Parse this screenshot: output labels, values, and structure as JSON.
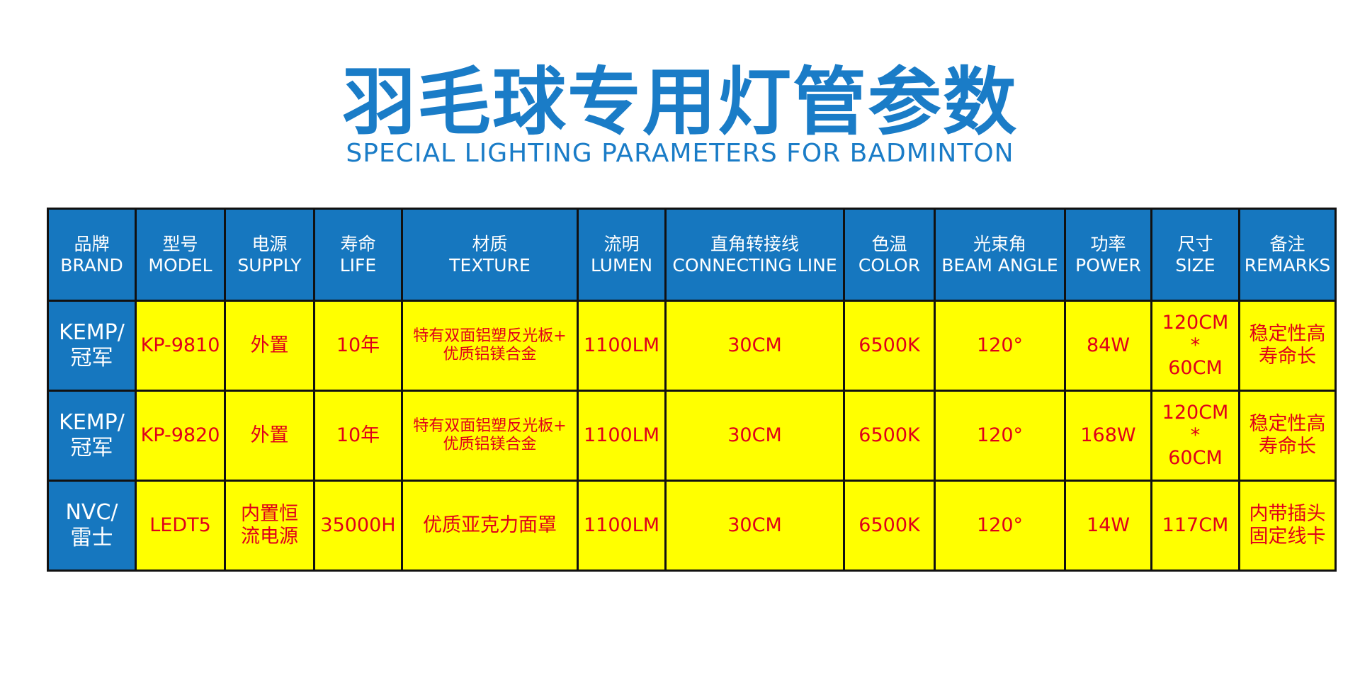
{
  "title": "羽毛球专用灯管参数",
  "subtitle": "SPECIAL LIGHTING PARAMETERS FOR BADMINTON",
  "colors": {
    "title": "#1a7cc7",
    "header_bg": "#1677bf",
    "cell_bg": "#ffff00",
    "cell_text": "#e0001a",
    "border": "#111111"
  },
  "columns": [
    {
      "cn": "品牌",
      "en": "BRAND"
    },
    {
      "cn": "型号",
      "en": "MODEL"
    },
    {
      "cn": "电源",
      "en": "SUPPLY"
    },
    {
      "cn": "寿命",
      "en": "LIFE"
    },
    {
      "cn": "材质",
      "en": "TEXTURE"
    },
    {
      "cn": "流明",
      "en": "LUMEN"
    },
    {
      "cn": "直角转接线",
      "en": "CONNECTING LINE"
    },
    {
      "cn": "色温",
      "en": "COLOR"
    },
    {
      "cn": "光束角",
      "en": "BEAM ANGLE"
    },
    {
      "cn": "功率",
      "en": "POWER"
    },
    {
      "cn": "尺寸",
      "en": "SIZE"
    },
    {
      "cn": "备注",
      "en": "REMARKS"
    }
  ],
  "rows": [
    {
      "brand": [
        "KEMP/",
        "冠军"
      ],
      "model": "KP-9810",
      "supply": [
        "外置"
      ],
      "life": "10年",
      "texture": [
        "特有双面铝塑反光板+",
        "优质铝镁合金"
      ],
      "lumen": "1100LM",
      "connecting_line": "30CM",
      "color": "6500K",
      "beam_angle": "120°",
      "power": "84W",
      "size": [
        "120CM",
        "*",
        "60CM"
      ],
      "remarks": [
        "稳定性高",
        "寿命长"
      ]
    },
    {
      "brand": [
        "KEMP/",
        "冠军"
      ],
      "model": "KP-9820",
      "supply": [
        "外置"
      ],
      "life": "10年",
      "texture": [
        "特有双面铝塑反光板+",
        "优质铝镁合金"
      ],
      "lumen": "1100LM",
      "connecting_line": "30CM",
      "color": "6500K",
      "beam_angle": "120°",
      "power": "168W",
      "size": [
        "120CM",
        "*",
        "60CM"
      ],
      "remarks": [
        "稳定性高",
        "寿命长"
      ]
    },
    {
      "brand": [
        "NVC/",
        "雷士"
      ],
      "model": "LEDT5",
      "supply": [
        "内置恒",
        "流电源"
      ],
      "life": "35000H",
      "texture": [
        "优质亚克力面罩"
      ],
      "lumen": "1100LM",
      "connecting_line": "30CM",
      "color": "6500K",
      "beam_angle": "120°",
      "power": "14W",
      "size": [
        "117CM"
      ],
      "remarks": [
        "内带插头",
        "固定线卡"
      ]
    }
  ]
}
